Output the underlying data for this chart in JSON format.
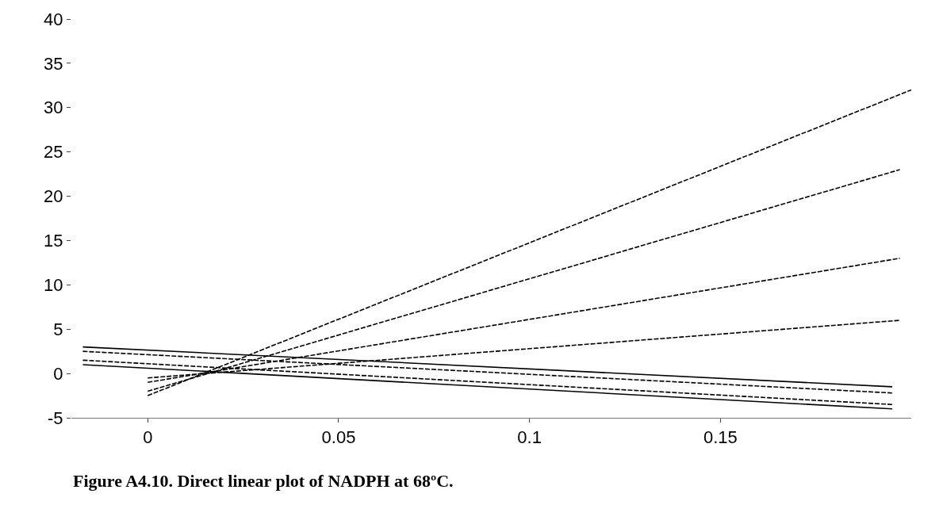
{
  "chart_data": {
    "type": "line",
    "annotations": [
      "Figure A4.10. Direct linear plot of NADPH at 68ºC."
    ],
    "xlim": [
      -0.02,
      0.2
    ],
    "xticks": [
      0,
      0.05,
      0.1,
      0.15
    ],
    "ylim": [
      -5,
      40
    ],
    "yticks": [
      -5,
      0,
      5,
      10,
      15,
      20,
      25,
      30,
      35,
      40
    ],
    "marker": "none",
    "series": [
      {
        "color": "#000000",
        "line_style": "dashed",
        "x": [
          0,
          0.2
        ],
        "values": [
          -2.5,
          32
        ]
      },
      {
        "color": "#000000",
        "line_style": "dashed",
        "x": [
          0,
          0.197
        ],
        "values": [
          -2,
          23
        ]
      },
      {
        "color": "#000000",
        "line_style": "dashed",
        "x": [
          0,
          0.197
        ],
        "values": [
          -1,
          13
        ]
      },
      {
        "color": "#000000",
        "line_style": "dashed",
        "x": [
          0,
          0.197
        ],
        "values": [
          -0.5,
          6
        ]
      },
      {
        "color": "#000000",
        "line_style": "solid",
        "x": [
          -0.017,
          0.195
        ],
        "values": [
          3,
          -1.5
        ]
      },
      {
        "color": "#000000",
        "line_style": "dashed",
        "x": [
          -0.017,
          0.195
        ],
        "values": [
          2.5,
          -2.2
        ]
      },
      {
        "color": "#000000",
        "line_style": "dashed",
        "x": [
          -0.017,
          0.195
        ],
        "values": [
          1.5,
          -3.5
        ]
      },
      {
        "color": "#000000",
        "line_style": "solid",
        "x": [
          -0.017,
          0.195
        ],
        "values": [
          1,
          -4
        ]
      }
    ]
  }
}
